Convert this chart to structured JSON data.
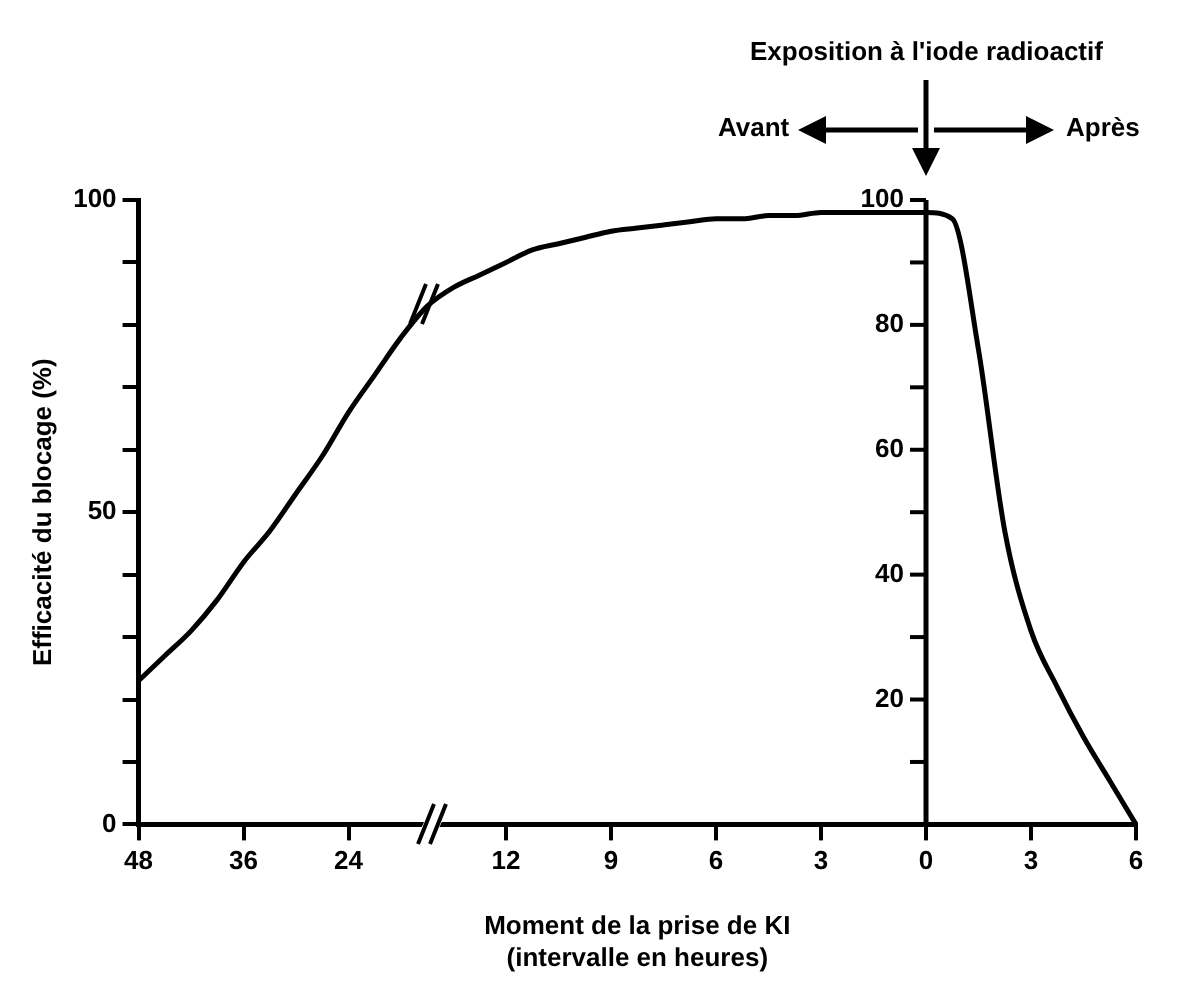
{
  "chart_data": {
    "type": "line",
    "ylabel": "Efficacité du blocage (%)",
    "xlabel": "Moment de la prise de KI\n(intervalle en heures)",
    "annotations": [
      "Exposition à l'iode radioactif",
      "Avant",
      "Après"
    ],
    "categories": [
      "48",
      null,
      null,
      null,
      "36",
      null,
      null,
      null,
      "24",
      null,
      null,
      null,
      null,
      null,
      "12",
      null,
      null,
      null,
      "9",
      null,
      null,
      null,
      "6",
      null,
      null,
      null,
      "3",
      null,
      null,
      null,
      "0",
      null,
      null,
      null,
      "3",
      null,
      null,
      null,
      "6"
    ],
    "values": [
      23,
      27,
      31,
      36,
      42,
      47,
      53,
      59,
      66,
      72,
      78,
      83,
      86,
      88,
      90,
      92,
      93,
      94,
      95,
      95.5,
      96,
      96.5,
      97,
      97,
      97.5,
      97.5,
      98,
      98,
      98,
      98,
      98,
      97,
      76,
      47,
      31,
      22,
      14,
      7,
      0
    ],
    "color": "#000000",
    "marker": "none",
    "grid": false,
    "legend": false,
    "ylim": [
      0,
      100
    ],
    "yticks": [
      0,
      {
        "value": 10,
        "label": null
      },
      {
        "value": 20,
        "label": null
      },
      {
        "value": 30,
        "label": null
      },
      {
        "value": 40,
        "label": null
      },
      50,
      {
        "value": 60,
        "label": null
      },
      {
        "value": 70,
        "label": null
      },
      {
        "value": 80,
        "label": null
      },
      {
        "value": 90,
        "label": null
      },
      100
    ],
    "y2lim": [
      0,
      100
    ],
    "y2ticks": [
      {
        "value": 10,
        "label": null
      },
      20,
      {
        "value": 30,
        "label": null
      },
      40,
      {
        "value": 50,
        "label": null
      },
      60,
      {
        "value": 70,
        "label": null
      },
      80,
      {
        "value": 90,
        "label": null
      },
      100
    ]
  }
}
